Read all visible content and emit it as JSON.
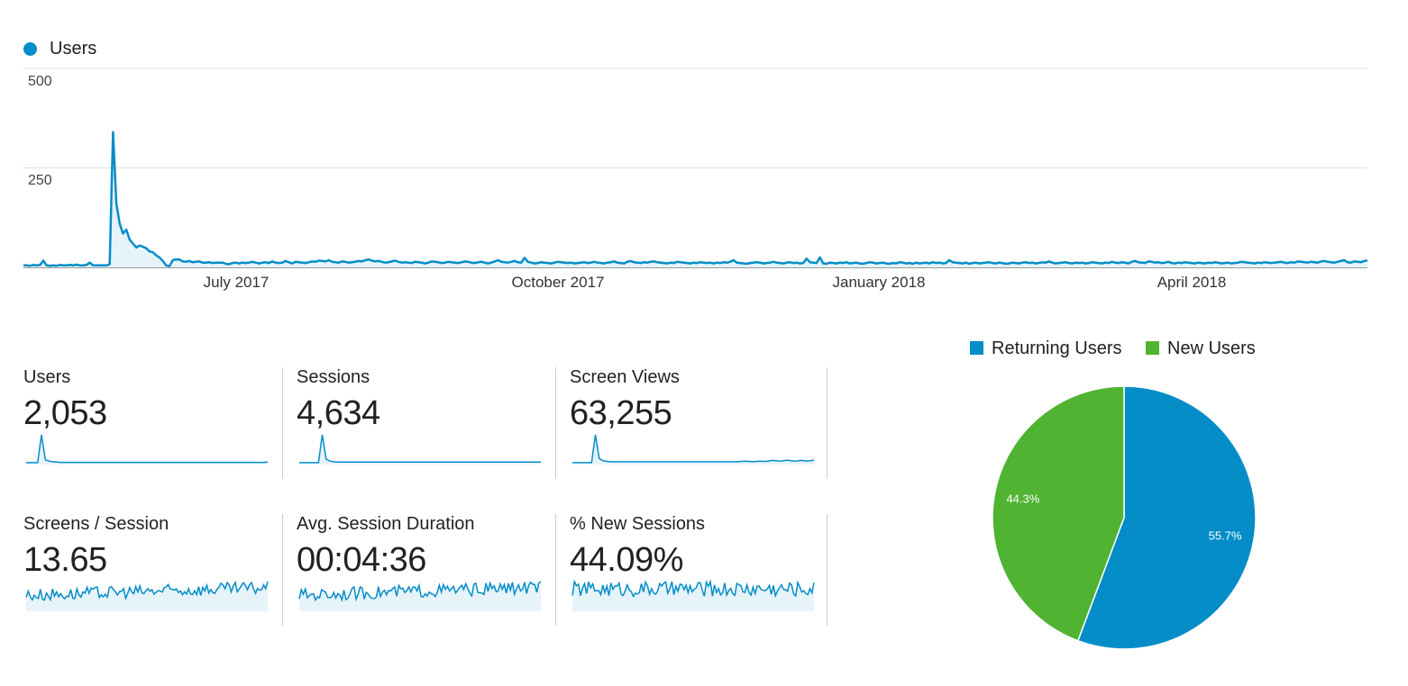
{
  "legend": {
    "series_label": "Users",
    "color": "#058dc7"
  },
  "chart_data": {
    "type": "line",
    "series": [
      {
        "name": "Users",
        "values": [
          5,
          5,
          4,
          6,
          5,
          6,
          17,
          5,
          4,
          5,
          4,
          6,
          5,
          5,
          6,
          5,
          7,
          5,
          5,
          6,
          12,
          5,
          5,
          5,
          5,
          5,
          8,
          340,
          160,
          110,
          85,
          95,
          70,
          60,
          50,
          55,
          52,
          48,
          40,
          38,
          30,
          25,
          16,
          5,
          3,
          18,
          20,
          20,
          15,
          14,
          16,
          13,
          14,
          15,
          12,
          12,
          13,
          11,
          12,
          12,
          12,
          9,
          8,
          11,
          12,
          10,
          12,
          11,
          12,
          14,
          12,
          10,
          12,
          13,
          11,
          15,
          12,
          11,
          12,
          16,
          13,
          10,
          14,
          13,
          12,
          11,
          13,
          15,
          14,
          17,
          16,
          15,
          18,
          14,
          13,
          12,
          15,
          14,
          12,
          13,
          14,
          16,
          15,
          18,
          20,
          17,
          15,
          16,
          14,
          12,
          13,
          15,
          17,
          14,
          12,
          13,
          12,
          11,
          14,
          13,
          12,
          10,
          12,
          15,
          14,
          13,
          11,
          12,
          14,
          13,
          12,
          11,
          13,
          15,
          14,
          12,
          11,
          13,
          14,
          12,
          10,
          12,
          15,
          18,
          14,
          13,
          12,
          14,
          16,
          13,
          12,
          24,
          14,
          12,
          10,
          11,
          13,
          12,
          11,
          10,
          12,
          14,
          13,
          12,
          11,
          12,
          10,
          11,
          12,
          13,
          11,
          12,
          14,
          12,
          11,
          10,
          12,
          13,
          15,
          12,
          11,
          10,
          14,
          16,
          13,
          12,
          11,
          13,
          12,
          14,
          15,
          13,
          12,
          11,
          10,
          12,
          11,
          14,
          13,
          12,
          11,
          10,
          12,
          11,
          13,
          12,
          11,
          12,
          10,
          12,
          11,
          13,
          12,
          14,
          18,
          12,
          11,
          10,
          9,
          11,
          12,
          13,
          12,
          10,
          11,
          12,
          14,
          12,
          11,
          10,
          12,
          13,
          11,
          12,
          10,
          11,
          22,
          13,
          12,
          11,
          25,
          10,
          9,
          12,
          11,
          10,
          12,
          11,
          13,
          10,
          11,
          12,
          10,
          9,
          11,
          13,
          12,
          10,
          11,
          12,
          10,
          9,
          11,
          10,
          13,
          12,
          10,
          11,
          9,
          12,
          10,
          11,
          12,
          10,
          13,
          11,
          12,
          10,
          11,
          18,
          13,
          12,
          11,
          10,
          12,
          9,
          11,
          12,
          10,
          11,
          12,
          13,
          11,
          10,
          12,
          11,
          9,
          10,
          12,
          11,
          10,
          12,
          13,
          11,
          12,
          10,
          11,
          13,
          12,
          15,
          12,
          10,
          11,
          12,
          13,
          11,
          10,
          12,
          11,
          12,
          10,
          11,
          13,
          12,
          11,
          10,
          12,
          11,
          14,
          12,
          11,
          13,
          12,
          10,
          14,
          16,
          13,
          12,
          11,
          15,
          14,
          12,
          13,
          11,
          12,
          14,
          11,
          10,
          12,
          11,
          13,
          12,
          11,
          10,
          12,
          11,
          10,
          12,
          11,
          13,
          12,
          10,
          11,
          12,
          10,
          11,
          12,
          14,
          13,
          12,
          11,
          10,
          12,
          11,
          13,
          12,
          11,
          12,
          13,
          14,
          12,
          11,
          13,
          12,
          15,
          14,
          13,
          12,
          14,
          13,
          12,
          15,
          16,
          14,
          13,
          12,
          14,
          16,
          18,
          13,
          12,
          15,
          14,
          13,
          16,
          17
        ]
      }
    ],
    "x_tick_labels": [
      "July 2017",
      "October 2017",
      "January 2018",
      "April 2018"
    ],
    "y_tick_labels": [
      "250",
      "500"
    ],
    "ylim": [
      0,
      500
    ],
    "grid": true
  },
  "metrics": [
    {
      "label": "Users",
      "value": "2,053",
      "trend": [
        3,
        3,
        3,
        3,
        90,
        12,
        8,
        6,
        5,
        4,
        4,
        4,
        4,
        4,
        4,
        4,
        4,
        4,
        4,
        4,
        4,
        4,
        4,
        4,
        4,
        4,
        4,
        4,
        4,
        4,
        4,
        4,
        4,
        4,
        4,
        4,
        4,
        4,
        4,
        4,
        4,
        4,
        4,
        4,
        4,
        4,
        4,
        4,
        4,
        4,
        4,
        4,
        4,
        4,
        4,
        4,
        4,
        4,
        4,
        4,
        4,
        4,
        4,
        5
      ]
    },
    {
      "label": "Sessions",
      "value": "4,634",
      "trend": [
        3,
        3,
        3,
        3,
        3,
        3,
        90,
        14,
        8,
        6,
        5,
        5,
        5,
        5,
        5,
        5,
        5,
        5,
        5,
        5,
        5,
        5,
        5,
        5,
        5,
        5,
        5,
        5,
        5,
        5,
        5,
        5,
        5,
        5,
        5,
        5,
        5,
        5,
        5,
        5,
        5,
        5,
        5,
        5,
        5,
        5,
        5,
        5,
        5,
        5,
        5,
        5,
        5,
        5,
        5,
        5,
        5,
        5,
        5,
        5,
        5,
        5,
        5,
        5
      ]
    },
    {
      "label": "Screen Views",
      "value": "63,255",
      "trend": [
        3,
        3,
        3,
        3,
        3,
        3,
        90,
        16,
        9,
        7,
        6,
        6,
        6,
        6,
        6,
        6,
        6,
        6,
        6,
        6,
        6,
        6,
        6,
        6,
        6,
        6,
        6,
        6,
        6,
        6,
        6,
        6,
        6,
        6,
        6,
        6,
        6,
        6,
        6,
        6,
        6,
        6,
        6,
        6,
        7,
        8,
        7,
        6,
        7,
        8,
        7,
        8,
        10,
        9,
        8,
        9,
        11,
        9,
        8,
        9,
        10,
        8,
        9,
        11
      ]
    },
    {
      "label": "Screens / Session",
      "value": "13.65"
    },
    {
      "label": "Avg. Session Duration",
      "value": "00:04:36"
    },
    {
      "label": "% New Sessions",
      "value": "44.09%"
    }
  ],
  "pie": {
    "legend": [
      {
        "label": "Returning Users",
        "color": "#058dc7"
      },
      {
        "label": "New Users",
        "color": "#50b432"
      }
    ],
    "slices": [
      {
        "label": "Returning Users",
        "value": 55.7,
        "text": "55.7%",
        "color": "#058dc7"
      },
      {
        "label": "New Users",
        "value": 44.3,
        "text": "44.3%",
        "color": "#50b432"
      }
    ]
  }
}
